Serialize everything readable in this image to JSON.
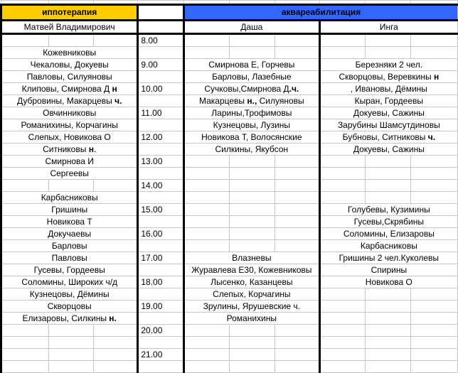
{
  "headers": {
    "hippotherapy": "иппотерапия",
    "aqua": "аквареабилитация",
    "hippo_instructor": "Матвей Владимирович",
    "aqua_instructor_1": "Даша",
    "aqua_instructor_2": "Инга"
  },
  "colors": {
    "hippo_header": "#ffcc00",
    "aqua_header": "#3366ff"
  },
  "rows": [
    {
      "time": "8.00",
      "hippo": [
        ""
      ],
      "dasha": [
        ""
      ],
      "inga": [
        ""
      ]
    },
    {
      "time": "",
      "hippo": [
        "Кожевниковы"
      ],
      "dasha": [
        ""
      ],
      "inga": [
        ""
      ]
    },
    {
      "time": "9.00",
      "hippo": [
        "Чекаловы, Докуевы"
      ],
      "dasha": [
        "Смирнова Е, Горчевы"
      ],
      "inga": [
        "Березняки 2 чел."
      ]
    },
    {
      "time": "",
      "hippo": [
        "Павловы, Силуяновы"
      ],
      "dasha": [
        "Барловы, Лазебные"
      ],
      "inga": [
        "Скворцовы, Веревкины ",
        "н"
      ]
    },
    {
      "time": "10.00",
      "hippo": [
        "Клиповы, Смирнова Д ",
        "н"
      ],
      "dasha": [
        "Сучковы,Смирнова Д",
        ".ч."
      ],
      "inga": [
        ", Ивановы, Дёмины"
      ]
    },
    {
      "time": "",
      "hippo": [
        "Дубровины, Макарцевы ",
        "ч."
      ],
      "dasha": [
        "Макарцевы ",
        "н.,",
        " Силуяновы"
      ],
      "inga": [
        "Кыран, Гордеевы"
      ]
    },
    {
      "time": "11.00",
      "hippo": [
        "Овчинниковы"
      ],
      "dasha": [
        "Ларины,Трофимовы"
      ],
      "inga": [
        "Докуевы, Сажины"
      ]
    },
    {
      "time": "",
      "hippo": [
        "Романихины, Корчагины"
      ],
      "dasha": [
        "Кузнецовы, Лузины"
      ],
      "inga": [
        "Зарубины Шамсутдиновы"
      ]
    },
    {
      "time": "12.00",
      "hippo": [
        "Слепых, Новикова О"
      ],
      "dasha": [
        "Новикова Т, Волосянские"
      ],
      "inga": [
        "Бубновы, Ситниковы ",
        "ч."
      ]
    },
    {
      "time": "",
      "hippo": [
        "Ситниковы ",
        "н",
        "."
      ],
      "dasha": [
        "Силкины, Якубсон"
      ],
      "inga": [
        "Докуевы, Сажины"
      ]
    },
    {
      "time": "13.00",
      "hippo": [
        "Смирнова И"
      ],
      "dasha": [
        ""
      ],
      "inga": [
        ""
      ]
    },
    {
      "time": "",
      "hippo": [
        "Сергеевы"
      ],
      "dasha": [
        ""
      ],
      "inga": [
        ""
      ]
    },
    {
      "time": "14.00",
      "hippo": [
        ""
      ],
      "dasha": [
        ""
      ],
      "inga": [
        ""
      ]
    },
    {
      "time": "",
      "hippo": [
        "Карбасниковы"
      ],
      "dasha": [
        ""
      ],
      "inga": [
        ""
      ]
    },
    {
      "time": "15.00",
      "hippo": [
        "Гришины"
      ],
      "dasha": [
        ""
      ],
      "inga": [
        "Голубевы, Кузимины"
      ]
    },
    {
      "time": "",
      "hippo": [
        "Новикова Т"
      ],
      "dasha": [
        ""
      ],
      "inga": [
        "Гусевы,Скрябины"
      ]
    },
    {
      "time": "16.00",
      "hippo": [
        "Докучаевы"
      ],
      "dasha": [
        ""
      ],
      "inga": [
        "Соломины, Елизаровы"
      ]
    },
    {
      "time": "",
      "hippo": [
        "Барловы"
      ],
      "dasha": [
        ""
      ],
      "inga": [
        "Карбасниковы"
      ]
    },
    {
      "time": "17.00",
      "hippo": [
        "Павловы"
      ],
      "dasha": [
        "Влазневы"
      ],
      "inga": [
        "Гришины 2 чел.Куколевы"
      ]
    },
    {
      "time": "",
      "hippo": [
        "Гусевы, Гордеевы"
      ],
      "dasha": [
        "Журавлева Е30, Кожевниковы"
      ],
      "inga": [
        "Спирины"
      ]
    },
    {
      "time": "18.00",
      "hippo": [
        "Соломины, Широких ч/д"
      ],
      "dasha": [
        "Лысенко, Казанцевы"
      ],
      "inga": [
        "Новикова О"
      ]
    },
    {
      "time": "",
      "hippo": [
        "Кузнецовы, Дёмины"
      ],
      "dasha": [
        "Слепых, Корчагины"
      ],
      "inga": [
        ""
      ]
    },
    {
      "time": "19.00",
      "hippo": [
        "Скворцовы"
      ],
      "dasha": [
        "Зрулины, Ярушевские ч."
      ],
      "inga": [
        ""
      ]
    },
    {
      "time": "",
      "hippo": [
        "Елизаровы, Силкины ",
        "н."
      ],
      "dasha": [
        "Романихины"
      ],
      "inga": [
        ""
      ]
    },
    {
      "time": "20.00",
      "hippo": [
        ""
      ],
      "dasha": [
        ""
      ],
      "inga": [
        ""
      ]
    },
    {
      "time": "",
      "hippo": [
        ""
      ],
      "dasha": [
        ""
      ],
      "inga": [
        ""
      ]
    },
    {
      "time": "21.00",
      "hippo": [
        ""
      ],
      "dasha": [
        ""
      ],
      "inga": [
        ""
      ]
    },
    {
      "time": "",
      "hippo": [
        ""
      ],
      "dasha": [
        ""
      ],
      "inga": [
        ""
      ]
    }
  ]
}
